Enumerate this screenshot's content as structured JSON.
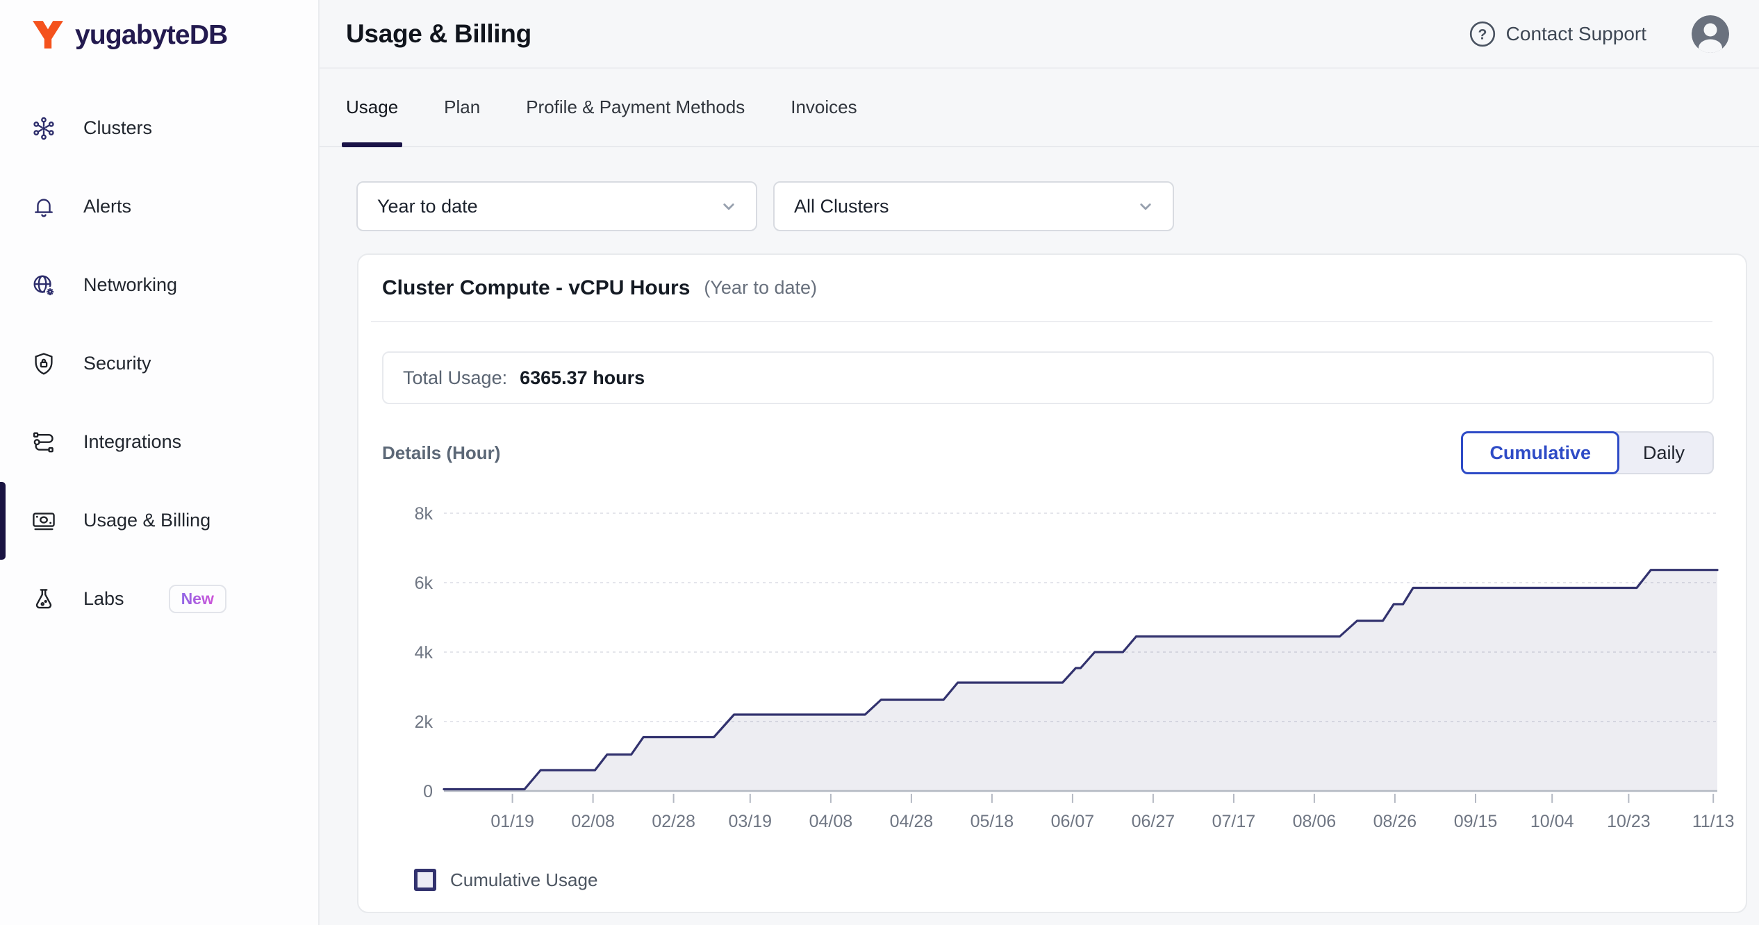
{
  "brand": {
    "name": "yugabyteDB"
  },
  "sidebar": {
    "items": [
      {
        "label": "Clusters"
      },
      {
        "label": "Alerts"
      },
      {
        "label": "Networking"
      },
      {
        "label": "Security"
      },
      {
        "label": "Integrations"
      },
      {
        "label": "Usage & Billing",
        "active": true
      },
      {
        "label": "Labs",
        "badge": "New"
      }
    ]
  },
  "header": {
    "title": "Usage & Billing",
    "support_label": "Contact Support"
  },
  "tabs": [
    {
      "label": "Usage",
      "active": true
    },
    {
      "label": "Plan"
    },
    {
      "label": "Profile & Payment Methods"
    },
    {
      "label": "Invoices"
    }
  ],
  "filters": {
    "period": "Year to date",
    "cluster": "All Clusters"
  },
  "usage_card": {
    "title": "Cluster Compute - vCPU Hours",
    "subtitle": "(Year to date)",
    "total_label": "Total Usage:",
    "total_value": "6365.37 hours",
    "details_label": "Details (Hour)",
    "view_toggle": {
      "options": [
        "Cumulative",
        "Daily"
      ],
      "selected": "Cumulative"
    },
    "legend_label": "Cumulative Usage"
  },
  "chart_data": {
    "type": "area",
    "title": "Cluster Compute - vCPU Hours (Year to date)",
    "x_unit": "day_of_year",
    "x_domain": [
      2,
      318
    ],
    "ylim": [
      0,
      8000
    ],
    "grid": "horizontal-dashed",
    "legend_position": "bottom-left",
    "series": [
      {
        "name": "Cumulative Usage",
        "unit": "vCPU hours",
        "points": [
          [
            2,
            50
          ],
          [
            22,
            50
          ],
          [
            26,
            600
          ],
          [
            39.5,
            600
          ],
          [
            42.5,
            1050
          ],
          [
            48.5,
            1050
          ],
          [
            51.5,
            1550
          ],
          [
            69,
            1550
          ],
          [
            74,
            2200
          ],
          [
            106.5,
            2200
          ],
          [
            110.5,
            2630
          ],
          [
            126,
            2630
          ],
          [
            129.5,
            3120
          ],
          [
            155.5,
            3120
          ],
          [
            158.8,
            3540
          ],
          [
            160,
            3540
          ],
          [
            163.5,
            4000
          ],
          [
            170.5,
            4000
          ],
          [
            173.8,
            4450
          ],
          [
            224.3,
            4450
          ],
          [
            228.6,
            4900
          ],
          [
            235,
            4900
          ],
          [
            237.7,
            5380
          ],
          [
            240,
            5380
          ],
          [
            242.5,
            5850
          ],
          [
            298,
            5850
          ],
          [
            301.5,
            6365.37
          ],
          [
            318,
            6365.37
          ]
        ]
      }
    ],
    "x_ticks": [
      {
        "day": 19,
        "label": "01/19"
      },
      {
        "day": 39,
        "label": "02/08"
      },
      {
        "day": 59,
        "label": "02/28"
      },
      {
        "day": 78,
        "label": "03/19"
      },
      {
        "day": 98,
        "label": "04/08"
      },
      {
        "day": 118,
        "label": "04/28"
      },
      {
        "day": 138,
        "label": "05/18"
      },
      {
        "day": 158,
        "label": "06/07"
      },
      {
        "day": 178,
        "label": "06/27"
      },
      {
        "day": 198,
        "label": "07/17"
      },
      {
        "day": 218,
        "label": "08/06"
      },
      {
        "day": 238,
        "label": "08/26"
      },
      {
        "day": 258,
        "label": "09/15"
      },
      {
        "day": 277,
        "label": "10/04"
      },
      {
        "day": 296,
        "label": "10/23"
      },
      {
        "day": 317,
        "label": "11/13"
      }
    ],
    "y_ticks": [
      {
        "value": 0,
        "label": "0"
      },
      {
        "value": 2000,
        "label": "2k"
      },
      {
        "value": 4000,
        "label": "4k"
      },
      {
        "value": 6000,
        "label": "6k"
      },
      {
        "value": 8000,
        "label": "8k"
      }
    ],
    "colors": {
      "line": "#32326E",
      "fill": "rgba(50,50,110,0.085)",
      "grid": "#E4E5EB",
      "axis": "#B4B9C3",
      "tick_label": "#6F7683",
      "accent_blue": "#2E4BC6",
      "brand_navy": "#1A1442",
      "brand_orange": "#F4521D"
    }
  }
}
